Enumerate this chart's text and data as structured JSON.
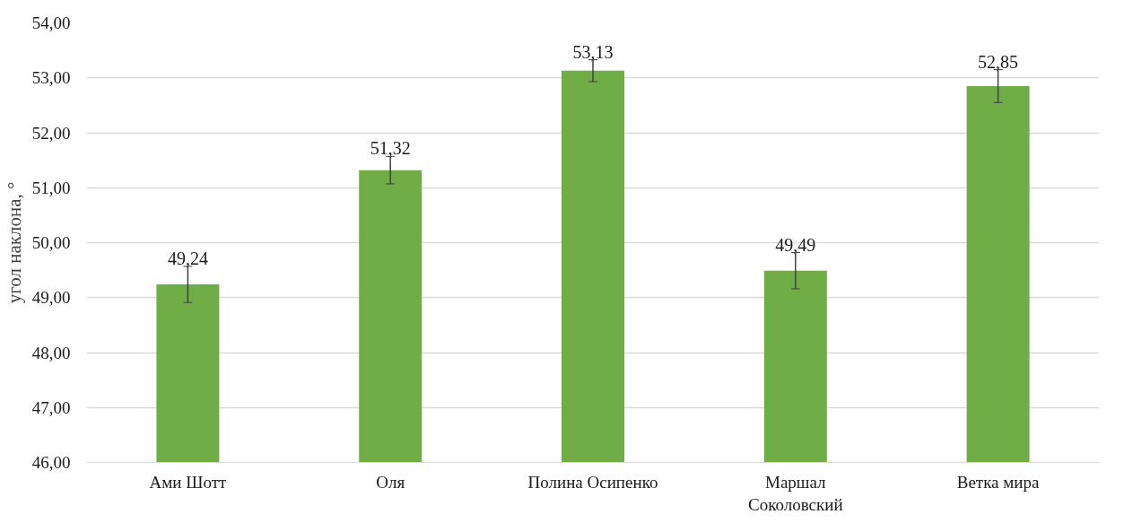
{
  "chart_data": {
    "type": "bar",
    "ylabel": "угол наклона, °",
    "categories": [
      "Ами Шотт",
      "Оля",
      "Полина Осипенко",
      "Маршал Соколовский",
      "Ветка мира"
    ],
    "values": [
      49.24,
      51.32,
      53.13,
      49.49,
      52.85
    ],
    "value_labels": [
      "49,24",
      "51,32",
      "53,13",
      "49,49",
      "52,85"
    ],
    "errors": [
      0.33,
      0.25,
      0.2,
      0.33,
      0.3
    ],
    "color": "#70ad47",
    "ylim": [
      46,
      54
    ],
    "yticks": [
      {
        "value": 46,
        "label": "46,00"
      },
      {
        "value": 47,
        "label": "47,00"
      },
      {
        "value": 48,
        "label": "48,00"
      },
      {
        "value": 49,
        "label": "49,00"
      },
      {
        "value": 50,
        "label": "50,00"
      },
      {
        "value": 51,
        "label": "51,00"
      },
      {
        "value": 52,
        "label": "52,00"
      },
      {
        "value": 53,
        "label": "53,00"
      },
      {
        "value": 54,
        "label": "54,00"
      }
    ],
    "grid": "y"
  }
}
